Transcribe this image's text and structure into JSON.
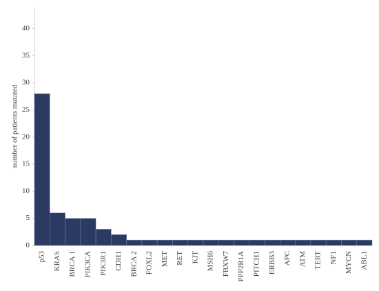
{
  "chart_data": {
    "type": "bar",
    "y_label": "number of patients mutated",
    "categories": [
      "p53",
      "KRAS",
      "BRCA 1",
      "PIK3CA",
      "PIK3R1",
      "CDH1",
      "BRCA 2",
      "FOXL2",
      "MET",
      "RET",
      "KIT",
      "MSH6",
      "FBXW7",
      "PPP2R1A",
      "PITCH1",
      "ERBB3",
      "APC",
      "ATM",
      "TERT",
      "NF1",
      "MYCN",
      "ABL1"
    ],
    "values": [
      28,
      6,
      5,
      5,
      3,
      2,
      1,
      1,
      1,
      1,
      1,
      1,
      1,
      1,
      1,
      1,
      1,
      1,
      1,
      1,
      1,
      1
    ],
    "color": "#2c3a63",
    "ylim": [
      0,
      44
    ],
    "yticks": [
      0,
      5,
      10,
      15,
      20,
      25,
      30,
      35,
      40
    ],
    "grid": false
  }
}
